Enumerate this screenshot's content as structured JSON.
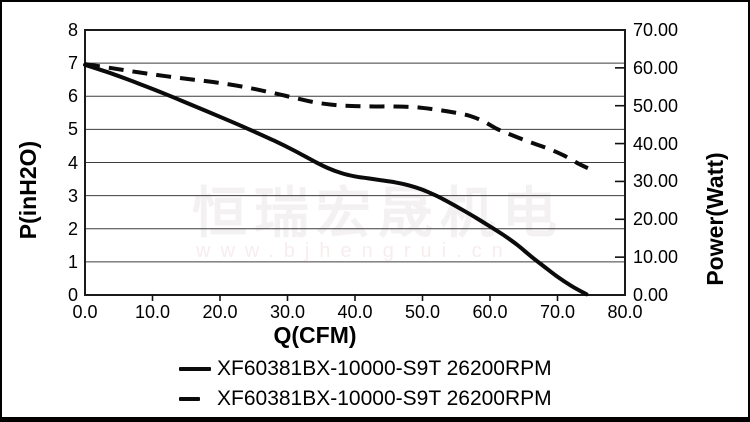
{
  "watermark": {
    "cn": "恒瑞宏晟机电",
    "url": "www.bjhengrui.cn"
  },
  "legend": {
    "items": [
      {
        "label": "XF60381BX-10000-S9T 26200RPM",
        "style": "solid"
      },
      {
        "label": "XF60381BX-10000-S9T 26200RPM",
        "style": "dashed"
      }
    ]
  },
  "chart_data": {
    "type": "line",
    "title": "",
    "xlabel": "Q(CFM)",
    "ylabel_left": "P(inH2O)",
    "ylabel_right": "Power(Watt)",
    "xlim": [
      0,
      80
    ],
    "ylim_left": [
      0,
      8
    ],
    "ylim_right": [
      0,
      70
    ],
    "x_ticks": [
      "0.0",
      "10.0",
      "20.0",
      "30.0",
      "40.0",
      "50.0",
      "60.0",
      "70.0",
      "80.0"
    ],
    "y_ticks_left": [
      "8",
      "7",
      "6",
      "5",
      "4",
      "3",
      "2",
      "1",
      "0"
    ],
    "y_ticks_right": [
      "70.00",
      "60.00",
      "50.00",
      "40.00",
      "30.00",
      "20.00",
      "10.00",
      "0.00"
    ],
    "grid": "horizontal-left-axis-units",
    "legend_position": "bottom",
    "colors": {
      "curve": "#0b0b0b",
      "gridline": "#3d3d3d",
      "frame": "#1a1a1a",
      "background": "#ffffff"
    },
    "series": [
      {
        "name": "XF60381BX-10000-S9T 26200RPM",
        "style": "solid",
        "axis": "left",
        "unit": "inH2O",
        "points": [
          [
            0,
            6.95
          ],
          [
            4,
            6.68
          ],
          [
            8,
            6.38
          ],
          [
            12,
            6.06
          ],
          [
            16,
            5.72
          ],
          [
            20,
            5.38
          ],
          [
            24,
            5.03
          ],
          [
            28,
            4.66
          ],
          [
            31,
            4.36
          ],
          [
            34,
            4.03
          ],
          [
            36,
            3.83
          ],
          [
            38,
            3.68
          ],
          [
            40,
            3.58
          ],
          [
            42,
            3.52
          ],
          [
            44,
            3.46
          ],
          [
            46,
            3.4
          ],
          [
            48,
            3.31
          ],
          [
            50,
            3.18
          ],
          [
            52,
            3.0
          ],
          [
            54,
            2.79
          ],
          [
            56,
            2.56
          ],
          [
            58,
            2.32
          ],
          [
            60,
            2.07
          ],
          [
            62,
            1.81
          ],
          [
            64,
            1.52
          ],
          [
            66,
            1.18
          ],
          [
            68,
            0.86
          ],
          [
            70,
            0.55
          ],
          [
            72,
            0.28
          ],
          [
            74.3,
            0.02
          ]
        ]
      },
      {
        "name": "XF60381BX-10000-S9T 26200RPM",
        "style": "dashed",
        "axis": "right",
        "unit": "Watt",
        "points": [
          [
            0,
            61.0
          ],
          [
            4,
            59.9
          ],
          [
            8,
            58.8
          ],
          [
            12,
            57.8
          ],
          [
            16,
            56.9
          ],
          [
            20,
            56.0
          ],
          [
            24,
            54.8
          ],
          [
            28,
            53.3
          ],
          [
            31,
            52.1
          ],
          [
            34,
            50.9
          ],
          [
            37,
            50.2
          ],
          [
            40,
            49.9
          ],
          [
            43,
            49.8
          ],
          [
            46,
            49.8
          ],
          [
            49,
            49.6
          ],
          [
            51,
            49.2
          ],
          [
            53,
            48.7
          ],
          [
            55,
            48.1
          ],
          [
            57,
            47.3
          ],
          [
            59,
            45.9
          ],
          [
            61,
            43.9
          ],
          [
            63,
            42.4
          ],
          [
            65,
            41.0
          ],
          [
            67,
            39.7
          ],
          [
            69,
            38.4
          ],
          [
            71,
            36.8
          ],
          [
            73,
            34.8
          ],
          [
            74.5,
            33.5
          ]
        ]
      }
    ]
  }
}
